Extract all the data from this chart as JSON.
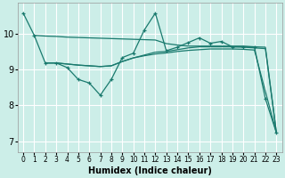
{
  "xlabel": "Humidex (Indice chaleur)",
  "bg_color": "#cceee8",
  "grid_color": "#ffffff",
  "line_color": "#1a7a6e",
  "xlim": [
    -0.5,
    23.5
  ],
  "ylim": [
    6.7,
    10.85
  ],
  "xticks": [
    0,
    1,
    2,
    3,
    4,
    5,
    6,
    7,
    8,
    9,
    10,
    11,
    12,
    13,
    14,
    15,
    16,
    17,
    18,
    19,
    20,
    21,
    22,
    23
  ],
  "yticks": [
    7,
    8,
    9,
    10
  ],
  "line1_x": [
    0,
    1,
    2,
    3,
    4,
    5,
    6,
    7,
    8,
    9,
    10,
    11,
    12,
    13,
    14,
    15,
    16,
    17,
    18,
    19,
    20,
    21,
    22,
    23
  ],
  "line1_y": [
    10.57,
    9.95,
    9.18,
    9.18,
    9.05,
    8.72,
    8.62,
    8.28,
    8.72,
    9.33,
    9.45,
    10.1,
    10.57,
    9.52,
    9.62,
    9.75,
    9.88,
    9.73,
    9.78,
    9.63,
    9.63,
    9.63,
    8.18,
    7.23
  ],
  "line2_x": [
    1,
    2,
    3,
    4,
    5,
    6,
    7,
    8,
    9,
    10,
    11,
    12,
    13,
    14,
    15,
    16,
    17,
    18,
    19,
    20,
    21,
    22,
    23
  ],
  "line2_y": [
    9.95,
    9.93,
    9.92,
    9.9,
    9.89,
    9.88,
    9.87,
    9.86,
    9.85,
    9.84,
    9.83,
    9.82,
    9.72,
    9.68,
    9.65,
    9.65,
    9.65,
    9.65,
    9.65,
    9.65,
    9.63,
    9.62,
    7.23
  ],
  "line3_x": [
    2,
    3,
    4,
    5,
    6,
    7,
    8,
    9,
    10,
    11,
    12,
    13,
    14,
    15,
    16,
    17,
    18,
    19,
    20,
    21,
    22,
    23
  ],
  "line3_y": [
    9.18,
    9.18,
    9.15,
    9.12,
    9.1,
    9.08,
    9.1,
    9.22,
    9.32,
    9.4,
    9.48,
    9.5,
    9.55,
    9.6,
    9.63,
    9.63,
    9.63,
    9.63,
    9.62,
    9.6,
    9.58,
    7.23
  ],
  "line4_x": [
    2,
    3,
    4,
    5,
    6,
    7,
    8,
    9,
    10,
    11,
    12,
    13,
    14,
    15,
    16,
    17,
    18,
    19,
    20,
    21,
    23
  ],
  "line4_y": [
    9.18,
    9.18,
    9.15,
    9.12,
    9.1,
    9.08,
    9.1,
    9.22,
    9.32,
    9.38,
    9.43,
    9.46,
    9.5,
    9.53,
    9.55,
    9.57,
    9.57,
    9.57,
    9.56,
    9.54,
    7.23
  ]
}
